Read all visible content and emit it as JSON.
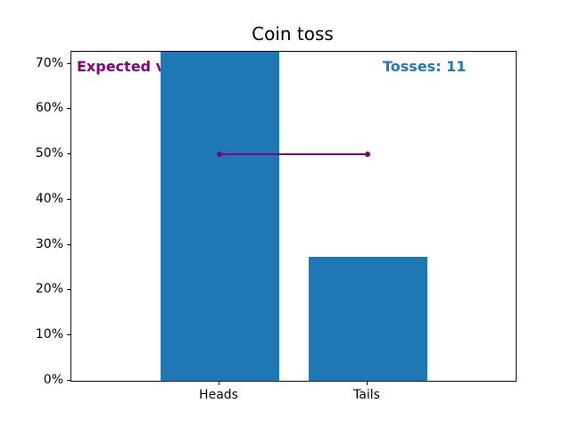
{
  "figure": {
    "background": "#ffffff",
    "text_color": "#000000"
  },
  "chart_data": {
    "type": "bar",
    "title": "Coin toss",
    "categories": [
      "Heads",
      "Tails"
    ],
    "values": [
      72.7,
      27.3
    ],
    "value_unit": "percent",
    "ylim": [
      0,
      72.7
    ],
    "yticks": [
      {
        "value": 0,
        "label": "0%"
      },
      {
        "value": 10,
        "label": "10%"
      },
      {
        "value": 20,
        "label": "20%"
      },
      {
        "value": 30,
        "label": "30%"
      },
      {
        "value": 40,
        "label": "40%"
      },
      {
        "value": 50,
        "label": "50%"
      },
      {
        "value": 60,
        "label": "60%"
      },
      {
        "value": 70,
        "label": "70%"
      }
    ],
    "grid": false,
    "legend": null,
    "bar_color": "#1f77b4",
    "tosses": 11,
    "annotations": [
      {
        "id": "expected",
        "text": "Expected values",
        "color": "#800080",
        "bold": true,
        "position": "top-left"
      },
      {
        "id": "tosses",
        "text": "Tosses: 11",
        "color": "#1f77b4",
        "bold": true,
        "position": "top-right"
      }
    ],
    "expected_line": {
      "value": 50,
      "color": "#800080",
      "marker": "dot",
      "from_category": "Heads",
      "to_category": "Tails"
    }
  }
}
